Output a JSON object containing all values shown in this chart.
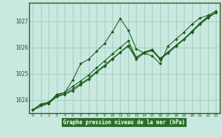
{
  "xlabel": "Graphe pression niveau de la mer (hPa)",
  "xlim": [
    -0.5,
    23.5
  ],
  "ylim": [
    1023.5,
    1027.7
  ],
  "yticks": [
    1024,
    1025,
    1026,
    1027
  ],
  "xticks": [
    0,
    1,
    2,
    3,
    4,
    5,
    6,
    7,
    8,
    9,
    10,
    11,
    12,
    13,
    14,
    15,
    16,
    17,
    18,
    19,
    20,
    21,
    22,
    23
  ],
  "background_color": "#c8e8e0",
  "grid_color": "#a0c8b8",
  "line_color": "#1a5c1a",
  "border_color": "#1a5c1a",
  "label_bg": "#2a6e2a",
  "series": [
    {
      "x": [
        0,
        1,
        2,
        3,
        4,
        5,
        6,
        7,
        8,
        9,
        10,
        11,
        12,
        13,
        14,
        15,
        16,
        17,
        18,
        19,
        20,
        21,
        22,
        23
      ],
      "y": [
        1023.62,
        1023.85,
        1023.92,
        1024.18,
        1024.28,
        1024.75,
        1025.38,
        1025.55,
        1025.85,
        1026.15,
        1026.6,
        1027.1,
        1026.65,
        1025.95,
        1025.78,
        1025.68,
        1025.38,
        1026.05,
        1026.32,
        1026.58,
        1026.88,
        1027.12,
        1027.22,
        1027.38
      ]
    },
    {
      "x": [
        0,
        2,
        3,
        4,
        5,
        6,
        7,
        8,
        9,
        10,
        11,
        12,
        13,
        14,
        15,
        16,
        17,
        18,
        19,
        20,
        21,
        22,
        23
      ],
      "y": [
        1023.62,
        1023.88,
        1024.22,
        1024.28,
        1024.52,
        1024.72,
        1024.95,
        1025.22,
        1025.48,
        1025.75,
        1026.0,
        1026.25,
        1025.62,
        1025.82,
        1025.92,
        1025.58,
        1025.82,
        1026.08,
        1026.32,
        1026.6,
        1026.9,
        1027.15,
        1027.32
      ]
    },
    {
      "x": [
        0,
        1,
        2,
        3,
        4,
        5,
        6,
        7,
        8,
        9,
        10,
        11,
        12,
        13,
        14,
        15,
        16,
        17,
        18,
        19,
        20,
        21,
        22,
        23
      ],
      "y": [
        1023.62,
        1023.82,
        1023.88,
        1024.15,
        1024.22,
        1024.35,
        1024.58,
        1024.78,
        1025.05,
        1025.28,
        1025.55,
        1025.82,
        1026.05,
        1025.55,
        1025.78,
        1025.88,
        1025.55,
        1025.78,
        1026.05,
        1026.3,
        1026.58,
        1026.88,
        1027.12,
        1027.32
      ]
    },
    {
      "x": [
        0,
        1,
        2,
        3,
        4,
        5,
        6,
        7,
        8,
        9,
        10,
        11,
        12,
        13,
        14,
        15,
        16,
        17,
        18,
        19,
        20,
        21,
        22,
        23
      ],
      "y": [
        1023.62,
        1023.82,
        1023.88,
        1024.12,
        1024.22,
        1024.42,
        1024.62,
        1024.82,
        1025.08,
        1025.32,
        1025.58,
        1025.82,
        1026.08,
        1025.62,
        1025.82,
        1025.92,
        1025.58,
        1025.82,
        1026.08,
        1026.32,
        1026.62,
        1026.92,
        1027.18,
        1027.32
      ]
    }
  ]
}
